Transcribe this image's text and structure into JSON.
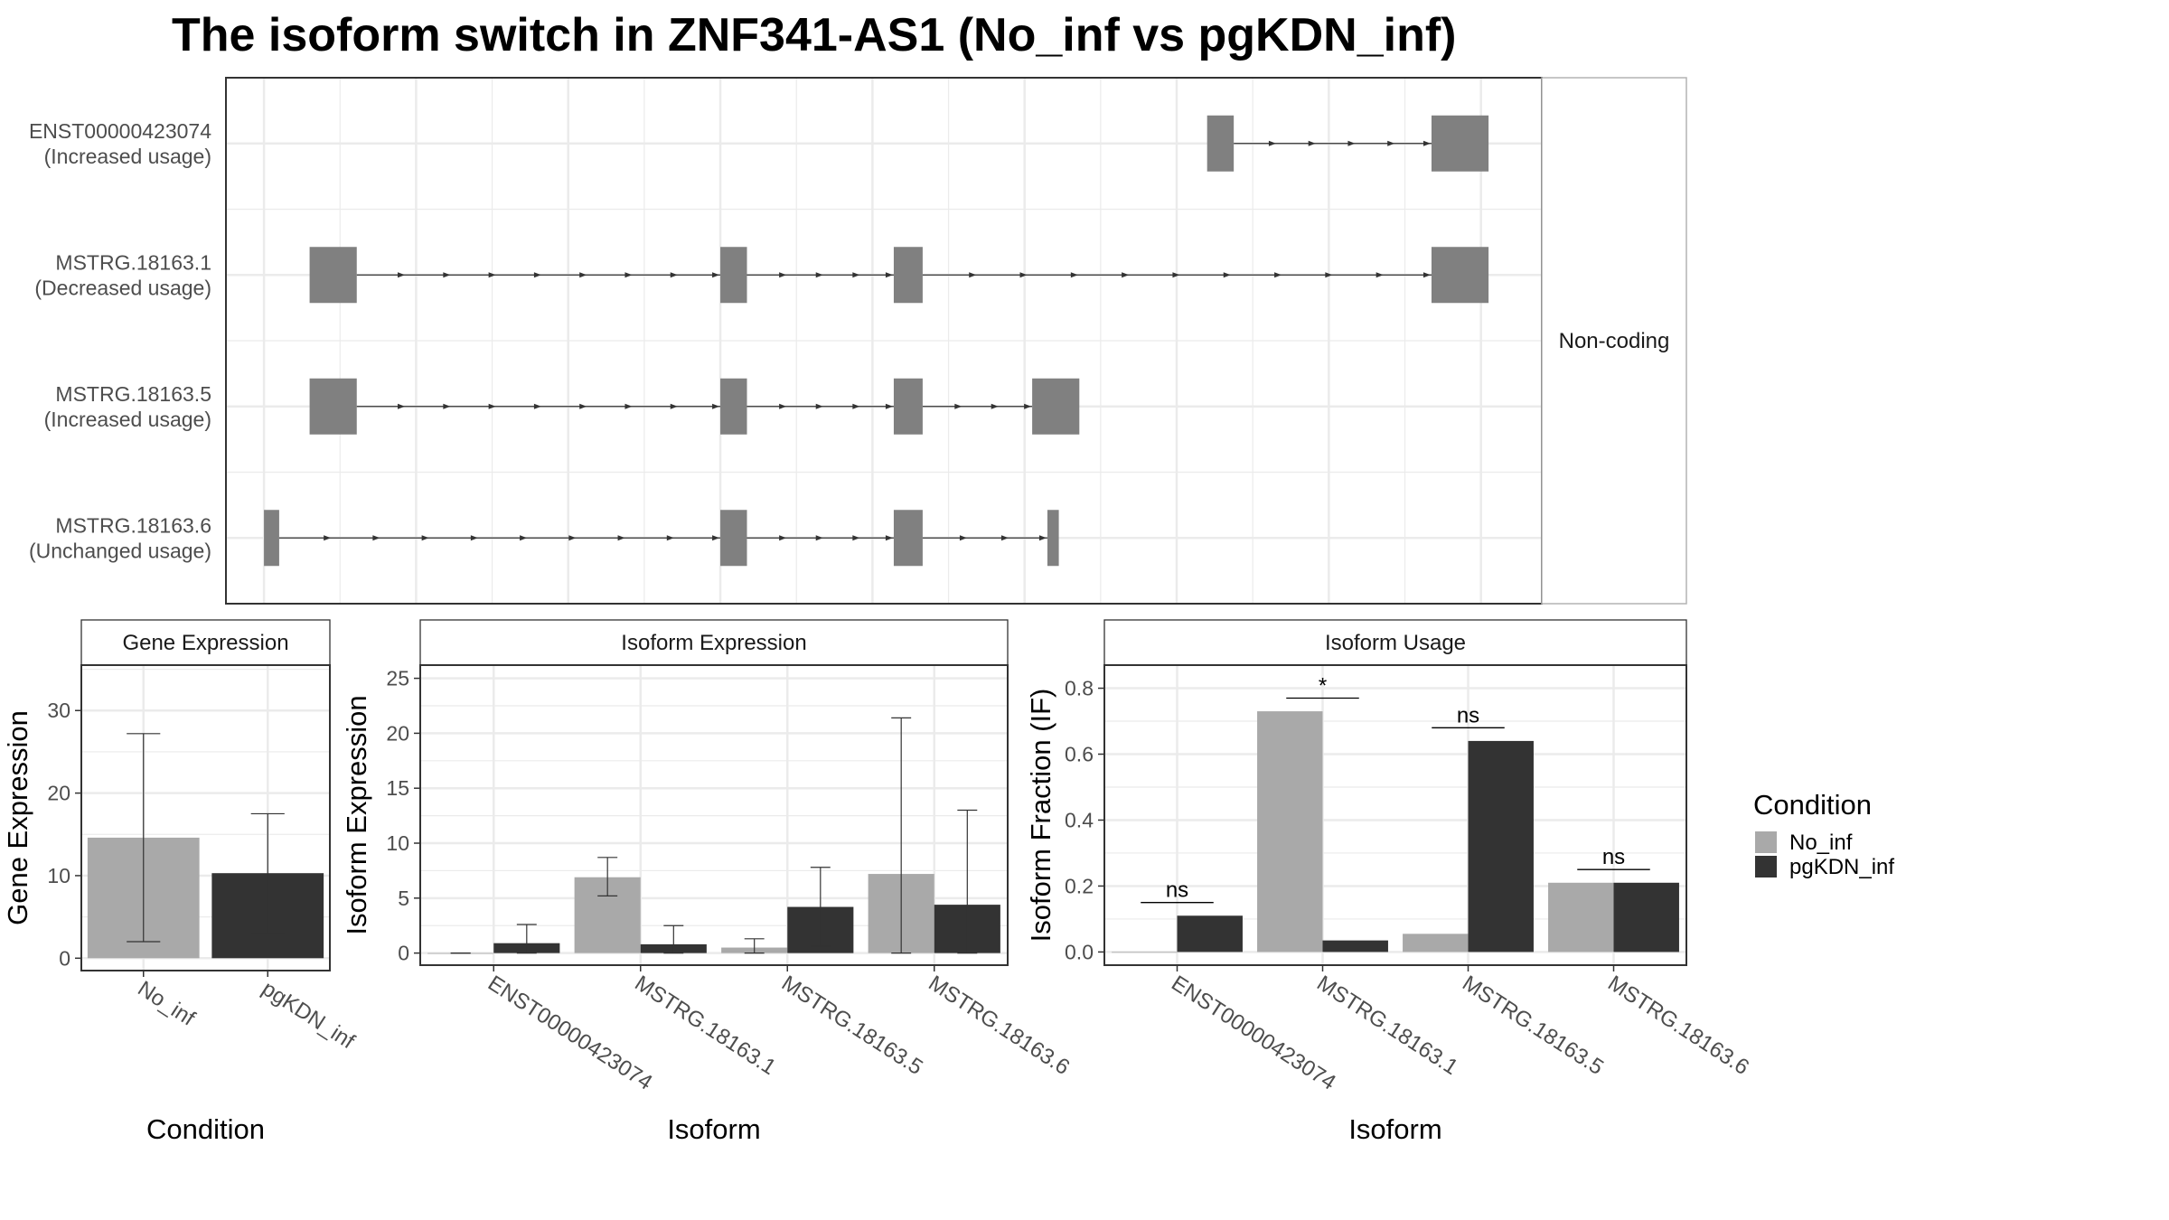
{
  "title": "The isoform switch in ZNF341-AS1 (No_inf vs pgKDN_inf)",
  "colors": {
    "No_inf": "#A9A9A9",
    "pgKDN_inf": "#333333",
    "exon": "#808080",
    "grid": "#EBEBEB",
    "strip_bg": "#FFFFFF",
    "text": "#4D4D4D"
  },
  "legend": {
    "title": "Condition",
    "items": [
      {
        "label": "No_inf",
        "color_key": "No_inf"
      },
      {
        "label": "pgKDN_inf",
        "color_key": "pgKDN_inf"
      }
    ]
  },
  "chart_data": [
    {
      "type": "gene-structure",
      "strip_label": "Non-coding",
      "transcripts": [
        {
          "name": "ENST00000423074",
          "usage": "(Increased usage)",
          "exons": [
            [
              12.4,
              12.75
            ],
            [
              15.35,
              16.1
            ]
          ]
        },
        {
          "name": "MSTRG.18163.1",
          "usage": "(Decreased usage)",
          "exons": [
            [
              0.6,
              1.22
            ],
            [
              6.0,
              6.35
            ],
            [
              8.28,
              8.66
            ],
            [
              15.35,
              16.1
            ]
          ]
        },
        {
          "name": "MSTRG.18163.5",
          "usage": "(Increased usage)",
          "exons": [
            [
              0.6,
              1.22
            ],
            [
              6.0,
              6.35
            ],
            [
              8.28,
              8.66
            ],
            [
              10.1,
              10.72
            ]
          ]
        },
        {
          "name": "MSTRG.18163.6",
          "usage": "(Unchanged usage)",
          "exons": [
            [
              0.0,
              0.2
            ],
            [
              6.0,
              6.35
            ],
            [
              8.28,
              8.66
            ],
            [
              10.3,
              10.45
            ]
          ]
        }
      ],
      "xlim": [
        -0.5,
        16.8
      ]
    },
    {
      "type": "bar",
      "strip_title": "Gene Expression",
      "xlabel": "Condition",
      "ylabel": "Gene Expression",
      "ylim": [
        -1.5,
        35.5
      ],
      "yticks": [
        0,
        10,
        20,
        30
      ],
      "categories": [
        "No_inf",
        "pgKDN_inf"
      ],
      "values": [
        14.6,
        10.3
      ],
      "errors": [
        [
          2.0,
          27.2
        ],
        [
          3.0,
          17.5
        ]
      ]
    },
    {
      "type": "bar",
      "strip_title": "Isoform Expression",
      "xlabel": "Isoform",
      "ylabel": "Isoform Expression",
      "ylim": [
        -1.1,
        26.2
      ],
      "yticks": [
        0,
        5,
        10,
        15,
        20,
        25
      ],
      "categories": [
        "ENST00000423074",
        "MSTRG.18163.1",
        "MSTRG.18163.5",
        "MSTRG.18163.6"
      ],
      "series": [
        {
          "name": "No_inf",
          "values": [
            0.0,
            6.9,
            0.5,
            7.2
          ],
          "errors": [
            [
              0.0,
              0.0
            ],
            [
              5.2,
              8.7
            ],
            [
              0.0,
              1.3
            ],
            [
              0.0,
              21.4
            ]
          ]
        },
        {
          "name": "pgKDN_inf",
          "values": [
            0.9,
            0.8,
            4.2,
            4.4
          ],
          "errors": [
            [
              0.0,
              2.6
            ],
            [
              0.0,
              2.5
            ],
            [
              0.6,
              7.8
            ],
            [
              0.0,
              13.0
            ]
          ]
        }
      ]
    },
    {
      "type": "bar",
      "strip_title": "Isoform Usage",
      "xlabel": "Isoform",
      "ylabel": "Isoform Fraction (IF)",
      "ylim": [
        -0.04,
        0.87
      ],
      "yticks": [
        0.0,
        0.2,
        0.4,
        0.6,
        0.8
      ],
      "ytick_labels": [
        "0.0",
        "0.2",
        "0.4",
        "0.6",
        "0.8"
      ],
      "categories": [
        "ENST00000423074",
        "MSTRG.18163.1",
        "MSTRG.18163.5",
        "MSTRG.18163.6"
      ],
      "series": [
        {
          "name": "No_inf",
          "values": [
            0.0,
            0.73,
            0.055,
            0.21
          ]
        },
        {
          "name": "pgKDN_inf",
          "values": [
            0.11,
            0.035,
            0.64,
            0.21
          ]
        }
      ],
      "significance": [
        {
          "label": "ns",
          "y": 0.15
        },
        {
          "label": "*",
          "y": 0.77
        },
        {
          "label": "ns",
          "y": 0.68
        },
        {
          "label": "ns",
          "y": 0.25
        }
      ]
    }
  ]
}
